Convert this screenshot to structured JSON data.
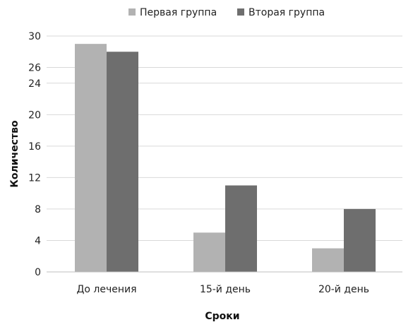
{
  "chart_data": {
    "type": "bar",
    "title": "",
    "xlabel": "Сроки",
    "ylabel": "Количество",
    "categories": [
      "До лечения",
      "15-й день",
      "20-й день"
    ],
    "series": [
      {
        "name": "Первая группа",
        "values": [
          29,
          5,
          3
        ],
        "color": "#b2b2b2"
      },
      {
        "name": "Вторая группа",
        "values": [
          28,
          11,
          8
        ],
        "color": "#6e6e6e"
      }
    ],
    "ylim": [
      0,
      30
    ],
    "yticks": [
      0,
      4,
      8,
      12,
      16,
      20,
      24,
      26,
      30
    ],
    "grid": true,
    "legend_position": "top-center"
  }
}
